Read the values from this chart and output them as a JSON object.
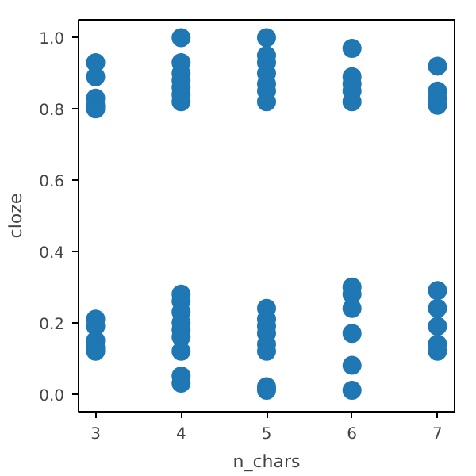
{
  "chart_data": {
    "type": "scatter",
    "xlabel": "n_chars",
    "ylabel": "cloze",
    "series": [
      {
        "color": "#1f77b4",
        "x": [
          3,
          3,
          3,
          3,
          3,
          3,
          3,
          3,
          3,
          3,
          4,
          4,
          4,
          4,
          4,
          4,
          4,
          4,
          4,
          4,
          4,
          4,
          4,
          4,
          4,
          4,
          5,
          5,
          5,
          5,
          5,
          5,
          5,
          5,
          5,
          5,
          5,
          5,
          5,
          5,
          5,
          6,
          6,
          6,
          6,
          6,
          6,
          6,
          6,
          6,
          6,
          6,
          7,
          7,
          7,
          7,
          7,
          7,
          7,
          7,
          7
        ],
        "values": [
          0.93,
          0.89,
          0.83,
          0.81,
          0.8,
          0.21,
          0.19,
          0.15,
          0.13,
          0.12,
          1.0,
          0.93,
          0.9,
          0.88,
          0.86,
          0.84,
          0.82,
          0.28,
          0.26,
          0.23,
          0.2,
          0.18,
          0.16,
          0.12,
          0.05,
          0.03,
          1.0,
          0.95,
          0.93,
          0.9,
          0.87,
          0.85,
          0.82,
          0.24,
          0.21,
          0.19,
          0.17,
          0.14,
          0.12,
          0.02,
          0.01,
          0.97,
          0.89,
          0.87,
          0.85,
          0.82,
          0.3,
          0.28,
          0.24,
          0.17,
          0.08,
          0.01,
          0.92,
          0.85,
          0.83,
          0.81,
          0.29,
          0.24,
          0.19,
          0.14,
          0.12
        ]
      }
    ],
    "xlim": [
      2.8,
      7.2
    ],
    "ylim": [
      -0.05,
      1.05
    ],
    "xticks": [
      3,
      4,
      5,
      6,
      7
    ],
    "yticks": [
      {
        "value": 0,
        "label": "0.0"
      },
      {
        "value": 0.2,
        "label": "0.2"
      },
      {
        "value": 0.4,
        "label": "0.4"
      },
      {
        "value": 0.6,
        "label": "0.6"
      },
      {
        "value": 0.8,
        "label": "0.8"
      },
      {
        "value": 1,
        "label": "1.0"
      }
    ],
    "marker": "circle",
    "grid": false
  }
}
